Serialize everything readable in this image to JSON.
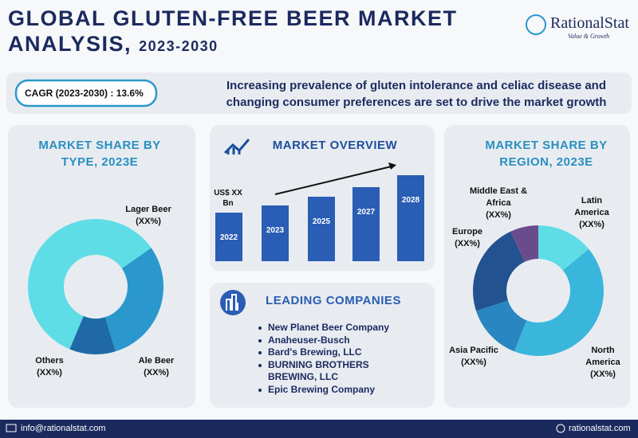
{
  "header": {
    "title_line1": "GLOBAL GLUTEN-FREE BEER MARKET",
    "title_line2": "ANALYSIS,",
    "years": "2023-2030",
    "logo_name": "RationalStat",
    "logo_tagline": "Value & Growth"
  },
  "banner": {
    "cagr": "CAGR (2023-2030) : 13.6%",
    "headline": "Increasing prevalence of gluten intolerance and celiac disease and changing consumer preferences are set to drive the market growth"
  },
  "chart_data": [
    {
      "type": "donut",
      "title": "MARKET SHARE BY TYPE, 2023E",
      "categories": [
        "Ale Beer",
        "Others",
        "Lager Beer"
      ],
      "values": [
        30,
        11,
        59
      ],
      "share_labels": [
        "(XX%)",
        "(XX%)",
        "(XX%)"
      ],
      "colors": [
        "#2a98cc",
        "#1f6aa6",
        "#5fdde6"
      ]
    },
    {
      "type": "bar",
      "title": "MARKET OVERVIEW",
      "unit_label": "US$ XX Bn",
      "categories": [
        "2022",
        "2023",
        "2025",
        "2027",
        "2028"
      ],
      "values": [
        61,
        70,
        81,
        93,
        108
      ],
      "color": "#2a5db4"
    },
    {
      "type": "donut",
      "title": "MARKET SHARE BY REGION, 2023E",
      "categories": [
        "Latin America",
        "North America",
        "Asia Pacific",
        "Europe",
        "Middle East & Africa"
      ],
      "values": [
        14,
        42,
        14,
        23,
        7
      ],
      "share_labels": [
        "(XX%)",
        "(XX%)",
        "(XX%)",
        "(XX%)",
        "(XX%)"
      ],
      "colors": [
        "#5fdde6",
        "#3ab6dd",
        "#2a86c0",
        "#22528f",
        "#6a4c8c"
      ]
    }
  ],
  "companies": {
    "title": "LEADING COMPANIES",
    "items": [
      "New Planet Beer Company",
      "Anaheuser-Busch",
      "Bard's Brewing, LLC",
      "BURNING BROTHERS BREWING, LLC",
      "Epic Brewing Company"
    ]
  },
  "footer": {
    "email": "info@rationalstat.com",
    "website": "rationalstat.com"
  }
}
